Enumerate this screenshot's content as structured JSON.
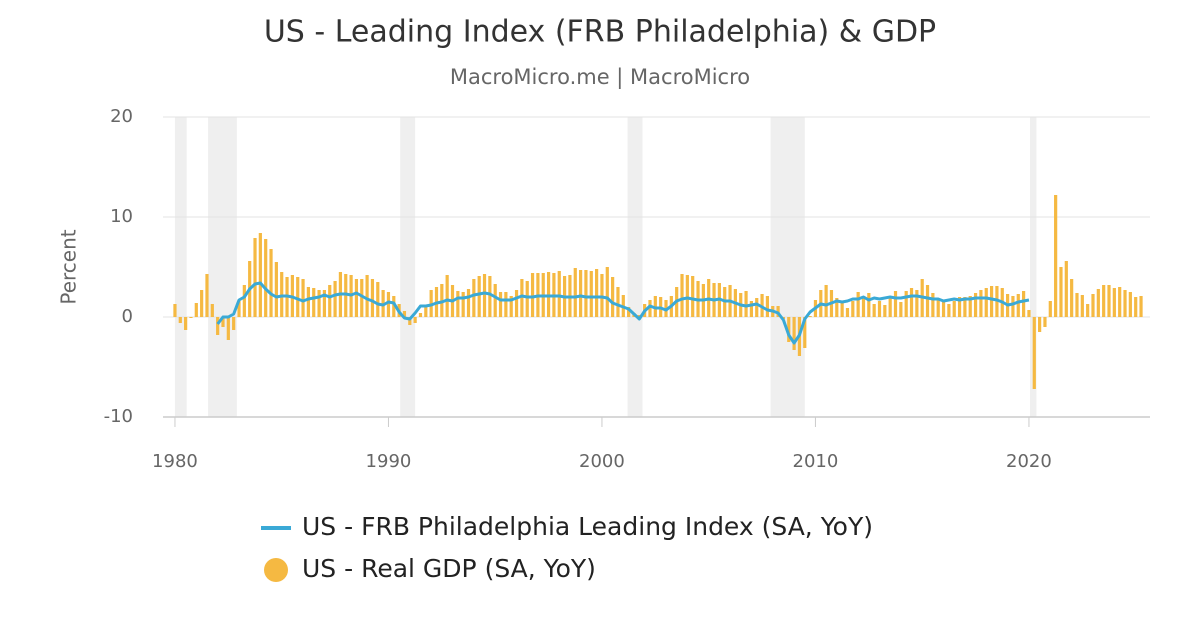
{
  "chart_data": {
    "type": "combo",
    "title": "US - Leading Index (FRB Philadelphia) & GDP",
    "subtitle": "MacroMicro.me | MacroMicro",
    "y_label": "Percent",
    "xlim": [
      1979.44,
      2025.67
    ],
    "ylim": [
      -10,
      20
    ],
    "xticks": [
      1980,
      1990,
      2000,
      2010,
      2020
    ],
    "yticks": [
      -10,
      0,
      10,
      20
    ],
    "grid": true,
    "recession_color": "#efefef",
    "recessions": [
      [
        1980.0,
        1980.55
      ],
      [
        1981.55,
        1982.9
      ],
      [
        1990.55,
        1991.25
      ],
      [
        2001.2,
        2001.9
      ],
      [
        2007.9,
        2009.5
      ],
      [
        2020.05,
        2020.35
      ]
    ],
    "series": [
      {
        "name": "US - FRB Philadelphia Leading Index (SA, YoY)",
        "type": "line",
        "color": "#3aa9d6",
        "x": [
          1982,
          1982.25,
          1982.5,
          1982.75,
          1983,
          1983.25,
          1983.5,
          1983.75,
          1984,
          1984.25,
          1984.5,
          1984.75,
          1985,
          1985.25,
          1985.5,
          1985.75,
          1986,
          1986.25,
          1986.5,
          1986.75,
          1987,
          1987.25,
          1987.5,
          1987.75,
          1988,
          1988.25,
          1988.5,
          1988.75,
          1989,
          1989.25,
          1989.5,
          1989.75,
          1990,
          1990.25,
          1990.5,
          1990.75,
          1991,
          1991.25,
          1991.5,
          1991.75,
          1992,
          1992.25,
          1992.5,
          1992.75,
          1993,
          1993.25,
          1993.5,
          1993.75,
          1994,
          1994.25,
          1994.5,
          1994.75,
          1995,
          1995.25,
          1995.5,
          1995.75,
          1996,
          1996.25,
          1996.5,
          1996.75,
          1997,
          1997.25,
          1997.5,
          1997.75,
          1998,
          1998.25,
          1998.5,
          1998.75,
          1999,
          1999.25,
          1999.5,
          1999.75,
          2000,
          2000.25,
          2000.5,
          2000.75,
          2001,
          2001.25,
          2001.5,
          2001.75,
          2002,
          2002.25,
          2002.5,
          2002.75,
          2003,
          2003.25,
          2003.5,
          2003.75,
          2004,
          2004.25,
          2004.5,
          2004.75,
          2005,
          2005.25,
          2005.5,
          2005.75,
          2006,
          2006.25,
          2006.5,
          2006.75,
          2007,
          2007.25,
          2007.5,
          2007.75,
          2008,
          2008.25,
          2008.5,
          2008.75,
          2009,
          2009.25,
          2009.5,
          2009.75,
          2010,
          2010.25,
          2010.5,
          2010.75,
          2011,
          2011.25,
          2011.5,
          2011.75,
          2012,
          2012.25,
          2012.5,
          2012.75,
          2013,
          2013.25,
          2013.5,
          2013.75,
          2014,
          2014.25,
          2014.5,
          2014.75,
          2015,
          2015.25,
          2015.5,
          2015.75,
          2016,
          2016.25,
          2016.5,
          2016.75,
          2017,
          2017.25,
          2017.5,
          2017.75,
          2018,
          2018.25,
          2018.5,
          2018.75,
          2019,
          2019.25,
          2019.5,
          2019.75,
          2020
        ],
        "values": [
          -0.7,
          0.0,
          0.0,
          0.3,
          1.7,
          2.0,
          2.8,
          3.3,
          3.4,
          2.8,
          2.3,
          2.0,
          2.1,
          2.1,
          2.0,
          1.8,
          1.6,
          1.8,
          1.9,
          2.0,
          2.2,
          2.0,
          2.2,
          2.3,
          2.3,
          2.2,
          2.4,
          2.1,
          1.8,
          1.6,
          1.3,
          1.2,
          1.5,
          1.4,
          0.5,
          -0.1,
          -0.2,
          0.4,
          1.1,
          1.1,
          1.2,
          1.4,
          1.5,
          1.7,
          1.6,
          1.9,
          1.9,
          2.0,
          2.2,
          2.3,
          2.4,
          2.3,
          2.0,
          1.7,
          1.7,
          1.7,
          1.9,
          2.1,
          2.0,
          2.0,
          2.1,
          2.1,
          2.1,
          2.1,
          2.1,
          2.0,
          2.0,
          2.0,
          2.1,
          2.0,
          2.0,
          2.0,
          2.0,
          1.9,
          1.4,
          1.2,
          1.0,
          0.8,
          0.3,
          -0.2,
          0.6,
          1.1,
          0.9,
          0.9,
          0.7,
          1.1,
          1.6,
          1.8,
          1.9,
          1.8,
          1.7,
          1.7,
          1.8,
          1.7,
          1.8,
          1.6,
          1.6,
          1.4,
          1.2,
          1.1,
          1.2,
          1.3,
          1.0,
          0.7,
          0.6,
          0.4,
          -0.3,
          -1.8,
          -2.6,
          -1.8,
          -0.2,
          0.5,
          0.9,
          1.3,
          1.2,
          1.4,
          1.6,
          1.5,
          1.6,
          1.8,
          1.8,
          2.0,
          1.7,
          1.9,
          1.8,
          1.9,
          2.0,
          1.9,
          1.9,
          2.0,
          2.1,
          2.1,
          2.0,
          1.9,
          1.8,
          1.8,
          1.6,
          1.7,
          1.8,
          1.7,
          1.8,
          1.8,
          1.9,
          1.9,
          1.9,
          1.8,
          1.7,
          1.5,
          1.2,
          1.3,
          1.5,
          1.6,
          1.7
        ]
      },
      {
        "name": "US - Real GDP (SA, YoY)",
        "type": "bar",
        "color": "#f5b942",
        "x": [
          1980,
          1980.25,
          1980.5,
          1980.75,
          1981,
          1981.25,
          1981.5,
          1981.75,
          1982,
          1982.25,
          1982.5,
          1982.75,
          1983,
          1983.25,
          1983.5,
          1983.75,
          1984,
          1984.25,
          1984.5,
          1984.75,
          1985,
          1985.25,
          1985.5,
          1985.75,
          1986,
          1986.25,
          1986.5,
          1986.75,
          1987,
          1987.25,
          1987.5,
          1987.75,
          1988,
          1988.25,
          1988.5,
          1988.75,
          1989,
          1989.25,
          1989.5,
          1989.75,
          1990,
          1990.25,
          1990.5,
          1990.75,
          1991,
          1991.25,
          1991.5,
          1991.75,
          1992,
          1992.25,
          1992.5,
          1992.75,
          1993,
          1993.25,
          1993.5,
          1993.75,
          1994,
          1994.25,
          1994.5,
          1994.75,
          1995,
          1995.25,
          1995.5,
          1995.75,
          1996,
          1996.25,
          1996.5,
          1996.75,
          1997,
          1997.25,
          1997.5,
          1997.75,
          1998,
          1998.25,
          1998.5,
          1998.75,
          1999,
          1999.25,
          1999.5,
          1999.75,
          2000,
          2000.25,
          2000.5,
          2000.75,
          2001,
          2001.25,
          2001.5,
          2001.75,
          2002,
          2002.25,
          2002.5,
          2002.75,
          2003,
          2003.25,
          2003.5,
          2003.75,
          2004,
          2004.25,
          2004.5,
          2004.75,
          2005,
          2005.25,
          2005.5,
          2005.75,
          2006,
          2006.25,
          2006.5,
          2006.75,
          2007,
          2007.25,
          2007.5,
          2007.75,
          2008,
          2008.25,
          2008.5,
          2008.75,
          2009,
          2009.25,
          2009.5,
          2009.75,
          2010,
          2010.25,
          2010.5,
          2010.75,
          2011,
          2011.25,
          2011.5,
          2011.75,
          2012,
          2012.25,
          2012.5,
          2012.75,
          2013,
          2013.25,
          2013.5,
          2013.75,
          2014,
          2014.25,
          2014.5,
          2014.75,
          2015,
          2015.25,
          2015.5,
          2015.75,
          2016,
          2016.25,
          2016.5,
          2016.75,
          2017,
          2017.25,
          2017.5,
          2017.75,
          2018,
          2018.25,
          2018.5,
          2018.75,
          2019,
          2019.25,
          2019.5,
          2019.75,
          2020,
          2020.25,
          2020.5,
          2020.75,
          2021,
          2021.25,
          2021.5,
          2021.75,
          2022,
          2022.25,
          2022.5,
          2022.75,
          2023,
          2023.25,
          2023.5,
          2023.75,
          2024,
          2024.25,
          2024.5,
          2024.75,
          2025,
          2025.25
        ],
        "values": [
          1.3,
          -0.6,
          -1.3,
          -0.1,
          1.4,
          2.7,
          4.3,
          1.3,
          -1.8,
          -1.0,
          -2.3,
          -1.3,
          1.6,
          3.2,
          5.6,
          7.9,
          8.4,
          7.8,
          6.8,
          5.5,
          4.5,
          4.0,
          4.2,
          4.0,
          3.8,
          3.0,
          2.9,
          2.7,
          2.7,
          3.2,
          3.6,
          4.5,
          4.3,
          4.2,
          3.8,
          3.8,
          4.2,
          3.8,
          3.5,
          2.7,
          2.5,
          2.1,
          1.3,
          0.6,
          -0.8,
          -0.6,
          0.4,
          1.0,
          2.7,
          3.0,
          3.3,
          4.2,
          3.2,
          2.6,
          2.5,
          2.8,
          3.8,
          4.1,
          4.3,
          4.1,
          3.3,
          2.5,
          2.5,
          2.1,
          2.7,
          3.8,
          3.6,
          4.4,
          4.4,
          4.4,
          4.5,
          4.4,
          4.6,
          4.1,
          4.2,
          4.9,
          4.7,
          4.7,
          4.6,
          4.8,
          4.3,
          5.0,
          4.0,
          3.0,
          2.2,
          1.0,
          0.4,
          0.2,
          1.3,
          1.7,
          2.1,
          2.0,
          1.7,
          2.1,
          3.0,
          4.3,
          4.2,
          4.1,
          3.6,
          3.3,
          3.8,
          3.4,
          3.4,
          3.0,
          3.2,
          2.8,
          2.4,
          2.6,
          1.6,
          1.9,
          2.3,
          2.1,
          1.1,
          1.1,
          -0.2,
          -2.5,
          -3.3,
          -3.9,
          -3.1,
          0.1,
          1.7,
          2.7,
          3.2,
          2.7,
          1.9,
          1.5,
          0.9,
          1.6,
          2.5,
          2.1,
          2.4,
          1.3,
          1.6,
          1.2,
          2.0,
          2.6,
          1.5,
          2.6,
          2.9,
          2.7,
          3.8,
          3.2,
          2.4,
          1.9,
          1.6,
          1.3,
          1.6,
          2.0,
          2.0,
          2.1,
          2.4,
          2.7,
          2.9,
          3.1,
          3.1,
          2.9,
          2.3,
          2.1,
          2.3,
          2.6,
          0.7,
          -7.2,
          -1.5,
          -1.0,
          1.6,
          12.2,
          5.0,
          5.6,
          3.8,
          2.4,
          2.2,
          1.3,
          2.3,
          2.8,
          3.2,
          3.2,
          2.9,
          3.0,
          2.7,
          2.5,
          2.0,
          2.1
        ]
      }
    ]
  }
}
